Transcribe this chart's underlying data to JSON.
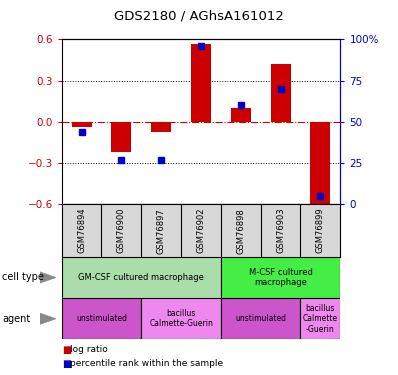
{
  "title": "GDS2180 / AGhsA161012",
  "samples": [
    "GSM76894",
    "GSM76900",
    "GSM76897",
    "GSM76902",
    "GSM76898",
    "GSM76903",
    "GSM76899"
  ],
  "log_ratios": [
    -0.04,
    -0.22,
    -0.07,
    0.57,
    0.1,
    0.42,
    -0.62
  ],
  "percentile_ranks": [
    44,
    27,
    27,
    96,
    60,
    70,
    5
  ],
  "ylim_left": [
    -0.6,
    0.6
  ],
  "ylim_right": [
    0,
    100
  ],
  "yticks_left": [
    -0.6,
    -0.3,
    0.0,
    0.3,
    0.6
  ],
  "yticks_right": [
    0,
    25,
    50,
    75,
    100
  ],
  "cell_types": [
    {
      "label": "GM-CSF cultured macrophage",
      "start": 0,
      "end": 4,
      "color": "#aaddaa"
    },
    {
      "label": "M-CSF cultured\nmacrophage",
      "start": 4,
      "end": 7,
      "color": "#44ee44"
    }
  ],
  "agents": [
    {
      "label": "unstimulated",
      "start": 0,
      "end": 2,
      "color": "#cc55cc"
    },
    {
      "label": "bacillus\nCalmette-Guerin",
      "start": 2,
      "end": 4,
      "color": "#ee88ee"
    },
    {
      "label": "unstimulated",
      "start": 4,
      "end": 6,
      "color": "#cc55cc"
    },
    {
      "label": "bacillus\nCalmette\n-Guerin",
      "start": 6,
      "end": 7,
      "color": "#ee88ee"
    }
  ],
  "bar_color": "#cc0000",
  "dot_color": "#0000cc",
  "background_color": "#ffffff",
  "left_yaxis_color": "#cc0000",
  "right_yaxis_color": "#0000cc"
}
